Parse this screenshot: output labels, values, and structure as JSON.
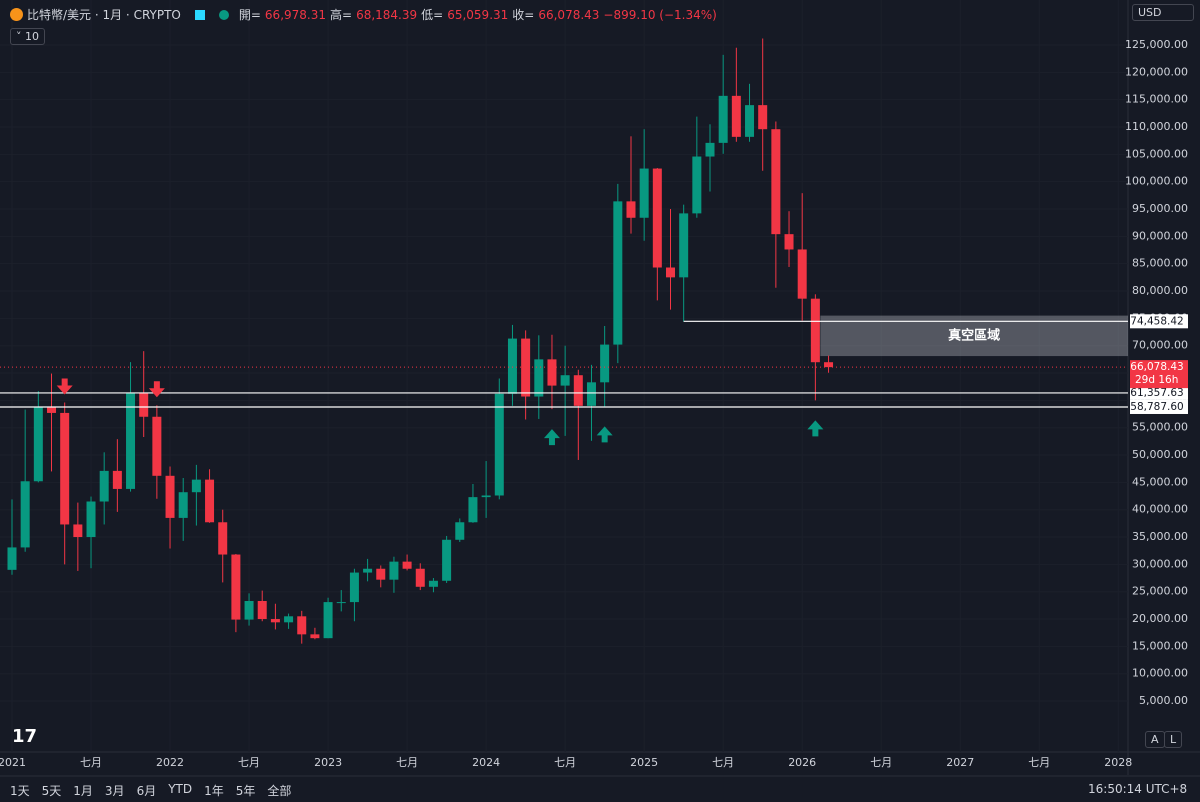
{
  "chart_data": {
    "type": "candlestick",
    "header": {
      "symbol": "比特幣/美元 · 1月 · CRYPTO",
      "open_label": "開=",
      "open": "66,978.31",
      "high_label": "高=",
      "high": "68,184.39",
      "low_label": "低=",
      "low": "65,059.31",
      "close_label": "收=",
      "close": "66,078.43",
      "change": "−899.10 (−1.34%)"
    },
    "indicator_count": "10",
    "currency": "USD",
    "toolbar": {
      "ranges": [
        "1天",
        "5天",
        "1月",
        "3月",
        "6月",
        "YTD",
        "1年",
        "5年",
        "全部"
      ],
      "clock": "16:50:14 UTC+8"
    },
    "scale_buttons": [
      "A",
      "L"
    ],
    "up_color": "#089981",
    "down_color": "#f23645",
    "categories": [
      "2021-01",
      "2021-02",
      "2021-03",
      "2021-04",
      "2021-05",
      "2021-06",
      "2021-07",
      "2021-08",
      "2021-09",
      "2021-10",
      "2021-11",
      "2021-12",
      "2022-01",
      "2022-02",
      "2022-03",
      "2022-04",
      "2022-05",
      "2022-06",
      "2022-07",
      "2022-08",
      "2022-09",
      "2022-10",
      "2022-11",
      "2022-12",
      "2023-01",
      "2023-02",
      "2023-03",
      "2023-04",
      "2023-05",
      "2023-06",
      "2023-07",
      "2023-08",
      "2023-09",
      "2023-10",
      "2023-11",
      "2023-12",
      "2024-01",
      "2024-02",
      "2024-03",
      "2024-04",
      "2024-05",
      "2024-06",
      "2024-07",
      "2024-08",
      "2024-09",
      "2024-10",
      "2024-11",
      "2024-12",
      "2025-01",
      "2025-02",
      "2025-03",
      "2025-04",
      "2025-05",
      "2025-06",
      "2025-07",
      "2025-08",
      "2025-09",
      "2025-10",
      "2025-11",
      "2025-12",
      "2026-01",
      "2026-02",
      "2026-03"
    ],
    "open": [
      29000,
      33100,
      45200,
      58800,
      57700,
      37300,
      35000,
      41500,
      47100,
      43800,
      61300,
      57000,
      46200,
      38500,
      43200,
      45500,
      37700,
      31800,
      19900,
      23300,
      20000,
      19400,
      20500,
      17200,
      16500,
      23100,
      23100,
      28500,
      29200,
      27200,
      30500,
      29200,
      25900,
      27000,
      34500,
      37700,
      42300,
      42600,
      61200,
      71300,
      60700,
      67500,
      62700,
      64600,
      59000,
      63300,
      70200,
      96400,
      93400,
      102400,
      84300,
      82500,
      94200,
      104600,
      107100,
      115700,
      108200,
      114000,
      109600,
      90400,
      87600,
      78600,
      66978.31
    ],
    "high": [
      41900,
      58300,
      61700,
      64900,
      59600,
      41300,
      42400,
      50500,
      52900,
      67000,
      69000,
      59100,
      47900,
      45800,
      48200,
      47400,
      40000,
      31900,
      24700,
      25200,
      22800,
      21000,
      21500,
      18400,
      23900,
      25300,
      29200,
      31000,
      29800,
      31400,
      31800,
      30200,
      27500,
      35200,
      38400,
      44700,
      48900,
      64000,
      73800,
      72800,
      71900,
      72000,
      70000,
      65600,
      66500,
      73600,
      99600,
      108300,
      109600,
      102500,
      95000,
      95800,
      111900,
      110500,
      123200,
      124500,
      117900,
      126200,
      111000,
      94600,
      97900,
      79400,
      68184.39
    ],
    "low": [
      28100,
      32300,
      45000,
      47000,
      30000,
      28800,
      29300,
      37300,
      39600,
      43300,
      53300,
      42000,
      32900,
      34300,
      37100,
      37600,
      26700,
      17600,
      18800,
      19600,
      18100,
      18200,
      15500,
      16300,
      16500,
      21400,
      19600,
      26900,
      25800,
      24800,
      28900,
      25300,
      24900,
      26600,
      34100,
      37600,
      38500,
      41900,
      59000,
      56500,
      56600,
      58400,
      53500,
      49100,
      52600,
      58900,
      66800,
      90500,
      89200,
      78300,
      76600,
      74400,
      93400,
      98200,
      105100,
      107300,
      107300,
      102000,
      80600,
      84400,
      74600,
      60000,
      65059.31
    ],
    "close": [
      33100,
      45200,
      58800,
      57700,
      37300,
      35000,
      41500,
      47100,
      43800,
      61300,
      57000,
      46200,
      38500,
      43200,
      45500,
      37700,
      31800,
      19900,
      23300,
      20000,
      19400,
      20500,
      17200,
      16500,
      23100,
      23100,
      28500,
      29200,
      27200,
      30500,
      29200,
      25900,
      27000,
      34500,
      37700,
      42300,
      42600,
      61200,
      71300,
      60700,
      67500,
      62700,
      64600,
      59000,
      63300,
      70200,
      96400,
      93400,
      102400,
      84300,
      82500,
      94200,
      104600,
      107100,
      115700,
      108200,
      114000,
      109600,
      90400,
      87600,
      78600,
      66978.31,
      66078.43
    ],
    "ylim": [
      -4320,
      128110
    ],
    "yticks": [
      {
        "value": 5000,
        "label": "5,000.00"
      },
      {
        "value": 10000,
        "label": "10,000.00"
      },
      {
        "value": 15000,
        "label": "15,000.00"
      },
      {
        "value": 20000,
        "label": "20,000.00"
      },
      {
        "value": 25000,
        "label": "25,000.00"
      },
      {
        "value": 30000,
        "label": "30,000.00"
      },
      {
        "value": 35000,
        "label": "35,000.00"
      },
      {
        "value": 40000,
        "label": "40,000.00"
      },
      {
        "value": 45000,
        "label": "45,000.00"
      },
      {
        "value": 50000,
        "label": "50,000.00"
      },
      {
        "value": 55000,
        "label": "55,000.00"
      },
      {
        "value": 60000,
        "label": "60,000.00"
      },
      {
        "value": 65000,
        "label": "65,000.00"
      },
      {
        "value": 70000,
        "label": "70,000.00"
      },
      {
        "value": 75000,
        "label": "75,000.00"
      },
      {
        "value": 80000,
        "label": "80,000.00"
      },
      {
        "value": 85000,
        "label": "85,000.00"
      },
      {
        "value": 90000,
        "label": "90,000.00"
      },
      {
        "value": 95000,
        "label": "95,000.00"
      },
      {
        "value": 100000,
        "label": "100,000.00"
      },
      {
        "value": 105000,
        "label": "105,000.00"
      },
      {
        "value": 110000,
        "label": "110,000.00"
      },
      {
        "value": 115000,
        "label": "115,000.00"
      },
      {
        "value": 120000,
        "label": "120,000.00"
      },
      {
        "value": 125000,
        "label": "125,000.00"
      }
    ],
    "xticks": [
      {
        "value": "2021-01",
        "label": "2021"
      },
      {
        "value": "2021-07",
        "label": "七月"
      },
      {
        "value": "2022-01",
        "label": "2022"
      },
      {
        "value": "2022-07",
        "label": "七月"
      },
      {
        "value": "2023-01",
        "label": "2023"
      },
      {
        "value": "2023-07",
        "label": "七月"
      },
      {
        "value": "2024-01",
        "label": "2024"
      },
      {
        "value": "2024-07",
        "label": "七月"
      },
      {
        "value": "2025-01",
        "label": "2025"
      },
      {
        "value": "2025-07",
        "label": "七月"
      },
      {
        "value": "2026-01",
        "label": "2026"
      },
      {
        "value": "2026-07",
        "label": "七月"
      },
      {
        "value": "2027-01",
        "label": "2027"
      },
      {
        "value": "2027-07",
        "label": "七月"
      },
      {
        "value": "2028-01",
        "label": "2028"
      }
    ],
    "grid": true,
    "levels": [
      {
        "value": 74458.42,
        "label": "74,458.42",
        "from": "2025-04"
      },
      {
        "value": 61357.63,
        "label": "61,357.63"
      },
      {
        "value": 58787.6,
        "label": "58,787.60"
      }
    ],
    "zone": {
      "label": "真空區域",
      "top": 75500,
      "bottom": 68100,
      "from": "2026-02"
    },
    "last_price": {
      "value": 66078.43,
      "label": "66,078.43",
      "countdown": "29d 16h"
    },
    "arrows": [
      {
        "at": "2021-05",
        "dir": "down"
      },
      {
        "at": "2021-12",
        "dir": "down"
      },
      {
        "at": "2024-06",
        "dir": "up"
      },
      {
        "at": "2024-10",
        "dir": "up"
      },
      {
        "at": "2026-02",
        "dir": "up"
      }
    ]
  }
}
